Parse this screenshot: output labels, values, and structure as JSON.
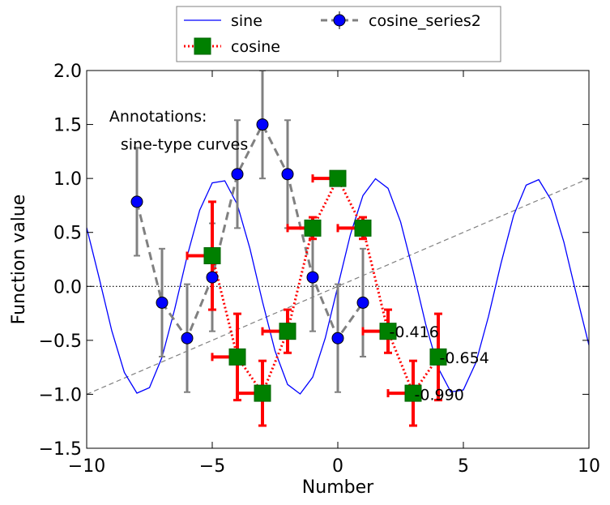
{
  "chart_data": {
    "type": "line",
    "title": "",
    "xlabel": "Number",
    "ylabel": "Function value",
    "xlim": [
      -10,
      10
    ],
    "ylim": [
      -1.5,
      2.0
    ],
    "xticks": [
      -10,
      -5,
      0,
      5,
      10
    ],
    "xtick_labels": [
      "−10",
      "−5",
      "0",
      "5",
      "10"
    ],
    "yticks": [
      -1.5,
      -1.0,
      -0.5,
      0.0,
      0.5,
      1.0,
      1.5,
      2.0
    ],
    "ytick_labels": [
      "−1.5",
      "−1.0",
      "−0.5",
      "0.0",
      "0.5",
      "1.0",
      "1.5",
      "2.0"
    ],
    "grid": false,
    "legend_position": "top-center, above plot",
    "series": [
      {
        "name": "sine",
        "style": "solid line",
        "color": "#0000ff",
        "x": [
          -10,
          -9.5,
          -9,
          -8.5,
          -8,
          -7.5,
          -7,
          -6.5,
          -6,
          -5.5,
          -5,
          -4.5,
          -4,
          -3.5,
          -3,
          -2.5,
          -2,
          -1.5,
          -1,
          -0.5,
          0,
          0.5,
          1,
          1.5,
          2,
          2.5,
          3,
          3.5,
          4,
          4.5,
          5,
          5.5,
          6,
          6.5,
          7,
          7.5,
          8,
          8.5,
          9,
          9.5,
          10
        ],
        "y": [
          0.544,
          0.075,
          -0.412,
          -0.798,
          -0.989,
          -0.938,
          -0.657,
          -0.215,
          0.279,
          0.706,
          0.959,
          0.978,
          0.757,
          0.351,
          -0.141,
          -0.598,
          -0.909,
          -0.997,
          -0.841,
          -0.479,
          0.0,
          0.479,
          0.841,
          0.997,
          0.909,
          0.598,
          0.141,
          -0.351,
          -0.757,
          -0.978,
          -0.959,
          -0.706,
          -0.279,
          0.215,
          0.657,
          0.938,
          0.989,
          0.798,
          0.412,
          -0.075,
          -0.544
        ]
      },
      {
        "name": "cosine",
        "style": "dotted line, square markers, horizontal and vertical error bars",
        "color": "#ff0000",
        "marker_color": "#008000",
        "x": [
          -5,
          -4,
          -3,
          -2,
          -1,
          0,
          1,
          2,
          3,
          4
        ],
        "y": [
          0.284,
          -0.654,
          -0.99,
          -0.416,
          0.54,
          1.0,
          0.54,
          -0.416,
          -0.99,
          -0.654
        ],
        "xerr": [
          1,
          1,
          1,
          1,
          1,
          1,
          1,
          1,
          1,
          0
        ],
        "yerr": [
          0.5,
          0.4,
          0.3,
          0.2,
          0.1,
          0.0,
          0.1,
          0.2,
          0.3,
          0.4
        ]
      },
      {
        "name": "cosine_series2",
        "style": "dashed line, circle markers, vertical error bars",
        "color": "#808080",
        "marker_color": "#0000ff",
        "x": [
          -8,
          -7,
          -6,
          -5,
          -4,
          -3,
          -2,
          -1,
          0,
          1
        ],
        "y": [
          0.784,
          -0.151,
          -0.48,
          0.084,
          1.04,
          1.5,
          1.04,
          0.084,
          -0.48,
          -0.151
        ],
        "yerr": [
          0.5,
          0.5,
          0.5,
          0.5,
          0.5,
          0.5,
          0.5,
          0.5,
          0.5,
          0.5
        ]
      },
      {
        "name": "",
        "style": "thin dashed diagonal reference line",
        "color": "#808080",
        "x": [
          -10,
          10
        ],
        "y": [
          -1.0,
          1.0
        ]
      },
      {
        "name": "",
        "style": "dotted horizontal zero line",
        "color": "#000000",
        "x": [
          -10,
          10
        ],
        "y": [
          0.0,
          0.0
        ]
      }
    ],
    "annotations": [
      {
        "text": "Annotations:",
        "x": -9.1,
        "y": 1.58
      },
      {
        "text": "sine-type curves",
        "x": -8.65,
        "y": 1.32
      },
      {
        "text": "-0.416",
        "x": 2.05,
        "y": -0.42
      },
      {
        "text": "-0.654",
        "x": 4.05,
        "y": -0.66
      },
      {
        "text": "-0.990",
        "x": 3.05,
        "y": -1.0
      }
    ]
  }
}
